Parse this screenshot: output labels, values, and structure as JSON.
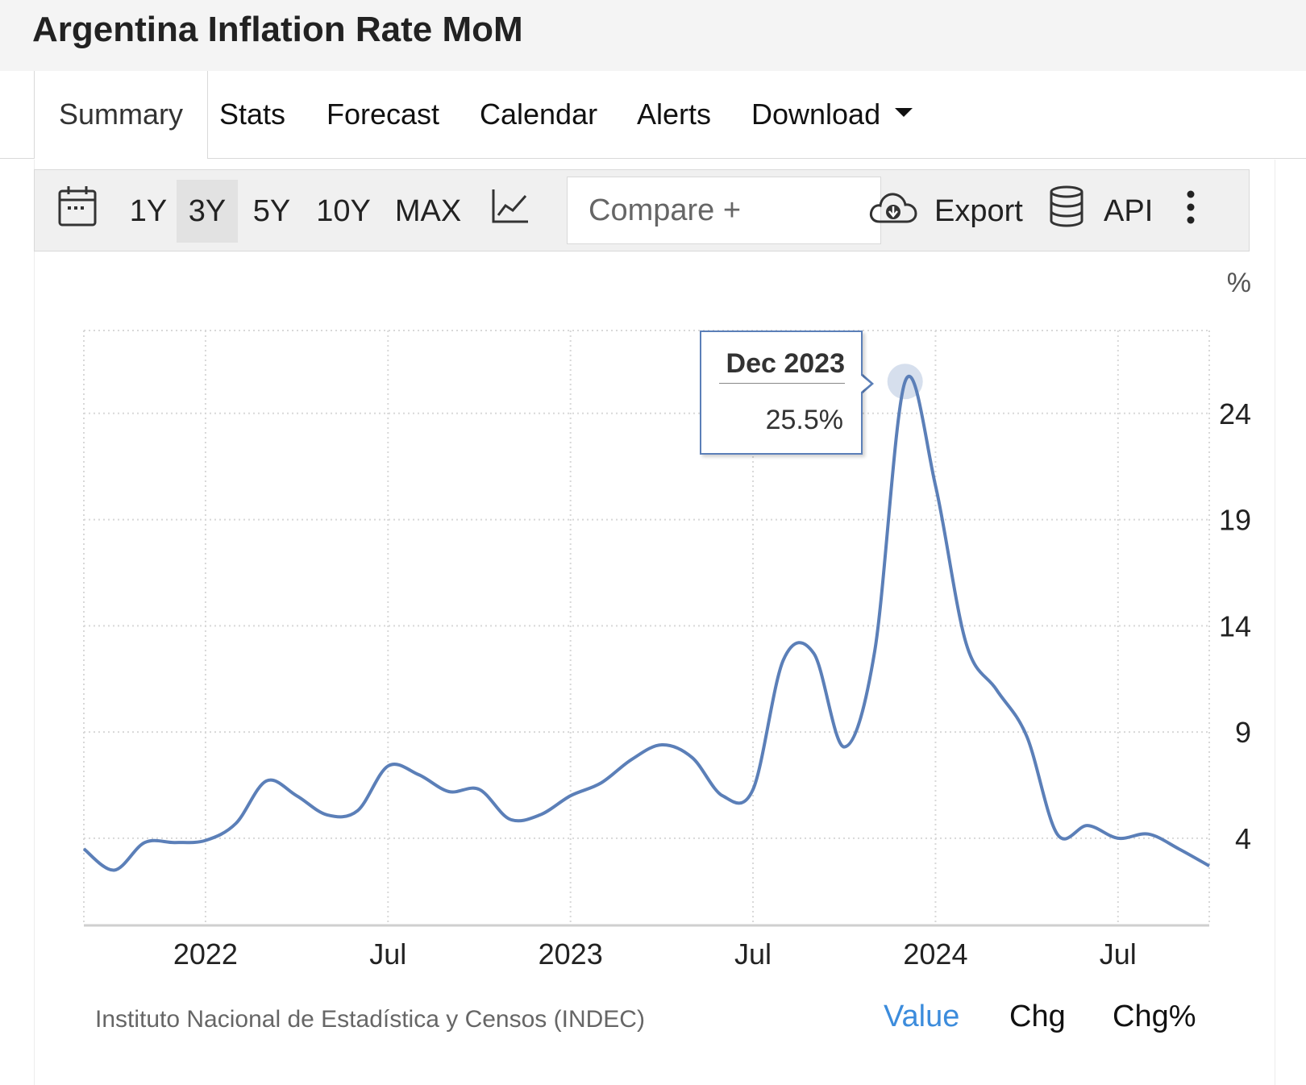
{
  "header": {
    "title": "Argentina Inflation Rate MoM"
  },
  "tabs": [
    {
      "label": "Summary"
    },
    {
      "label": "Stats"
    },
    {
      "label": "Forecast"
    },
    {
      "label": "Calendar"
    },
    {
      "label": "Alerts"
    },
    {
      "label": "Download"
    }
  ],
  "toolbar": {
    "ranges": [
      "1Y",
      "3Y",
      "5Y",
      "10Y",
      "MAX"
    ],
    "selected_range": "3Y",
    "compare_placeholder": "Compare +",
    "export_label": "Export",
    "api_label": "API",
    "icons": [
      "calendar-icon",
      "line-chart-icon",
      "cloud-download-icon",
      "database-icon",
      "more-vertical-icon"
    ]
  },
  "tooltip": {
    "date": "Dec 2023",
    "value": "25.5%"
  },
  "footer": {
    "source": "Instituto Nacional de Estadística y Censos (INDEC)",
    "views": [
      "Value",
      "Chg",
      "Chg%"
    ],
    "active_view": "Value"
  },
  "colors": {
    "line": "#5b7fb8",
    "active": "#3c8cdc",
    "grid": "#d8d8d8"
  },
  "chart_data": {
    "type": "line",
    "unit_label": "%",
    "title": "",
    "xlabel": "",
    "ylabel": "%",
    "y_axis_position": "right",
    "grid": true,
    "ylim": [
      -0.1,
      27.9
    ],
    "yticks": [
      4,
      9,
      14,
      19,
      24
    ],
    "x_ticks": [
      {
        "label": "2022",
        "x": "2022-01"
      },
      {
        "label": "Jul",
        "x": "2022-07"
      },
      {
        "label": "2023",
        "x": "2023-01"
      },
      {
        "label": "Jul",
        "x": "2023-07"
      },
      {
        "label": "2024",
        "x": "2024-01"
      },
      {
        "label": "Jul",
        "x": "2024-07"
      }
    ],
    "xlim": [
      "2021-09",
      "2024-10"
    ],
    "series": [
      {
        "x": [
          "2021-09",
          "2021-10",
          "2021-11",
          "2021-12",
          "2022-01",
          "2022-02",
          "2022-03",
          "2022-04",
          "2022-05",
          "2022-06",
          "2022-07",
          "2022-08",
          "2022-09",
          "2022-10",
          "2022-11",
          "2022-12",
          "2023-01",
          "2023-02",
          "2023-03",
          "2023-04",
          "2023-05",
          "2023-06",
          "2023-07",
          "2023-08",
          "2023-09",
          "2023-10",
          "2023-11",
          "2023-12",
          "2024-01",
          "2024-02",
          "2024-03",
          "2024-04",
          "2024-05",
          "2024-06",
          "2024-07",
          "2024-08",
          "2024-09",
          "2024-10"
        ],
        "values": [
          3.5,
          2.5,
          3.8,
          3.8,
          3.9,
          4.7,
          6.7,
          6.0,
          5.1,
          5.3,
          7.4,
          7.0,
          6.2,
          6.3,
          4.9,
          5.1,
          6.0,
          6.6,
          7.7,
          8.4,
          7.8,
          6.0,
          6.3,
          12.4,
          12.7,
          8.3,
          12.8,
          25.5,
          20.6,
          13.2,
          11.0,
          8.8,
          4.2,
          4.6,
          4.0,
          4.2,
          3.5,
          2.7
        ]
      }
    ]
  }
}
